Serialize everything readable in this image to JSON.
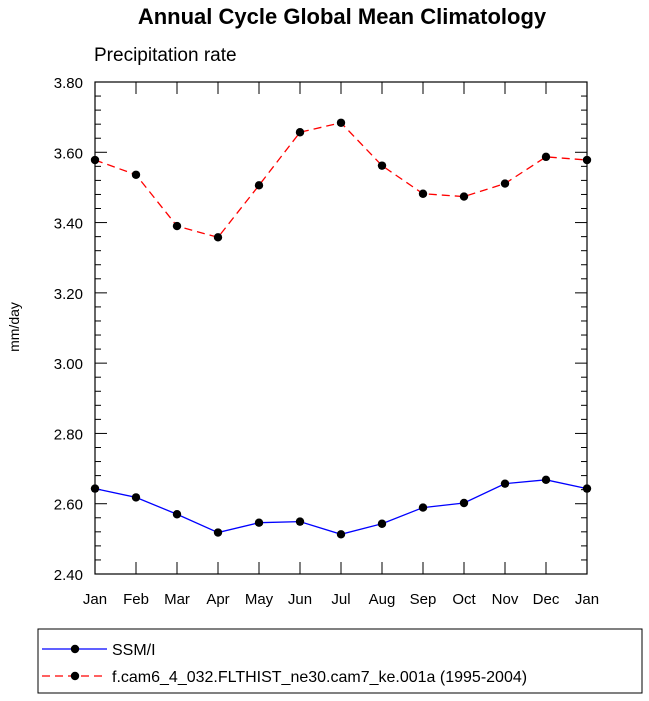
{
  "chart_data": {
    "type": "line",
    "title": "Annual Cycle Global Mean Climatology",
    "subtitle": "Precipitation rate",
    "xlabel": "",
    "ylabel": "mm/day",
    "categories": [
      "Jan",
      "Feb",
      "Mar",
      "Apr",
      "May",
      "Jun",
      "Jul",
      "Aug",
      "Sep",
      "Oct",
      "Nov",
      "Dec",
      "Jan"
    ],
    "ylim": [
      2.4,
      3.8
    ],
    "yticks": [
      "2.40",
      "2.60",
      "2.80",
      "3.00",
      "3.20",
      "3.40",
      "3.60",
      "3.80"
    ],
    "ytick_values": [
      2.4,
      2.6,
      2.8,
      3.0,
      3.2,
      3.4,
      3.6,
      3.8
    ],
    "grid": false,
    "legend_position": "bottom",
    "series": [
      {
        "name": "SSM/I",
        "color": "#0000ff",
        "line_style": "solid",
        "marker": "filled-circle",
        "values": [
          2.643,
          2.618,
          2.57,
          2.518,
          2.546,
          2.549,
          2.513,
          2.543,
          2.589,
          2.602,
          2.657,
          2.668,
          2.643
        ]
      },
      {
        "name": "f.cam6_4_032.FLTHIST_ne30.cam7_ke.001a (1995-2004)",
        "color": "#ff0000",
        "line_style": "dashed",
        "marker": "filled-circle",
        "values": [
          3.578,
          3.536,
          3.39,
          3.358,
          3.506,
          3.657,
          3.684,
          3.562,
          3.482,
          3.474,
          3.511,
          3.587,
          3.578
        ]
      }
    ]
  }
}
